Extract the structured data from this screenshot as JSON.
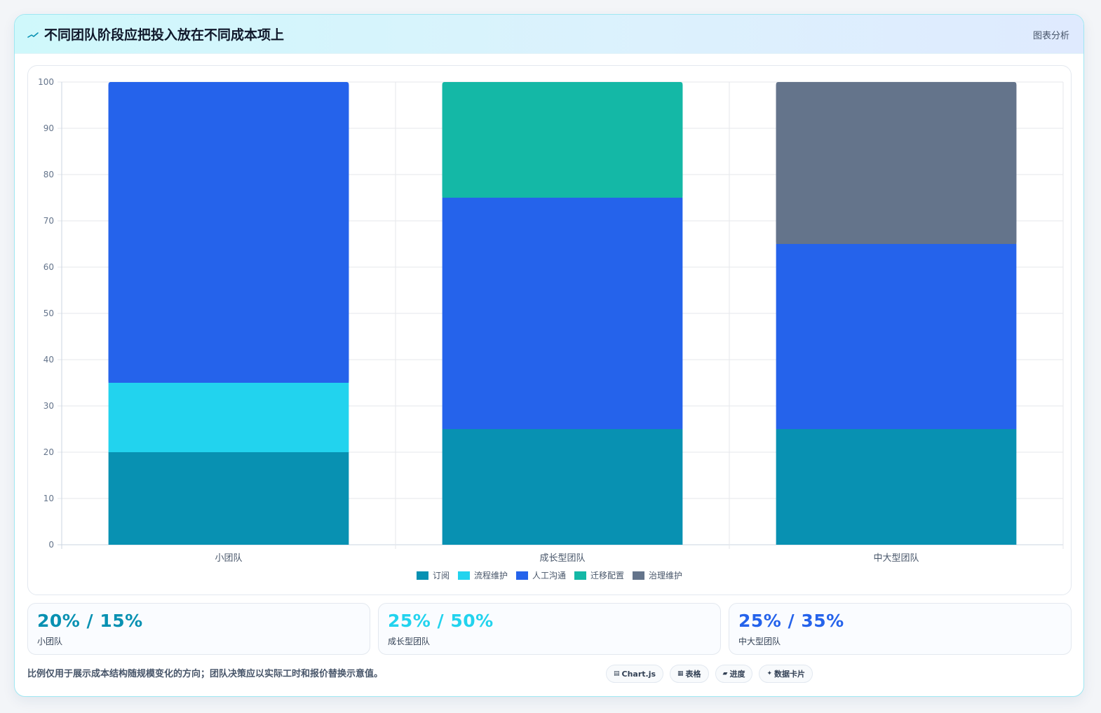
{
  "header": {
    "title": "不同团队阶段应把投入放在不同成本项上",
    "tag": "图表分析"
  },
  "chart_data": {
    "type": "bar",
    "stacked": true,
    "categories": [
      "小团队",
      "成长型团队",
      "中大型团队"
    ],
    "series": [
      {
        "name": "订阅",
        "color": "#0891b2",
        "values": [
          20,
          25,
          25
        ]
      },
      {
        "name": "流程维护",
        "color": "#22d3ee",
        "values": [
          15,
          0,
          0
        ]
      },
      {
        "name": "人工沟通",
        "color": "#2563eb",
        "values": [
          65,
          50,
          40
        ]
      },
      {
        "name": "迁移配置",
        "color": "#14b8a6",
        "values": [
          0,
          25,
          0
        ]
      },
      {
        "name": "治理维护",
        "color": "#64748b",
        "values": [
          0,
          0,
          35
        ]
      }
    ],
    "ylim": [
      0,
      100
    ],
    "yticks": [
      0,
      10,
      20,
      30,
      40,
      50,
      60,
      70,
      80,
      90,
      100
    ],
    "grid": true,
    "legend_position": "bottom"
  },
  "stats": [
    {
      "value": "20% / 15%",
      "label": "小团队",
      "color": "#0891b2"
    },
    {
      "value": "25% / 50%",
      "label": "成长型团队",
      "color": "#22d3ee"
    },
    {
      "value": "25% / 35%",
      "label": "中大型团队",
      "color": "#2563eb"
    }
  ],
  "footer": {
    "note": "比例仅用于展示成本结构随规模变化的方向；团队决策应以实际工时和报价替换示意值。"
  },
  "chips": [
    {
      "icon": "▤",
      "label": "Chart.js"
    },
    {
      "icon": "▦",
      "label": "表格"
    },
    {
      "icon": "▰",
      "label": "进度"
    },
    {
      "icon": "✦",
      "label": "数据卡片"
    }
  ],
  "colors": {
    "accent": "#0891b2",
    "border": "#9fe7f2"
  }
}
